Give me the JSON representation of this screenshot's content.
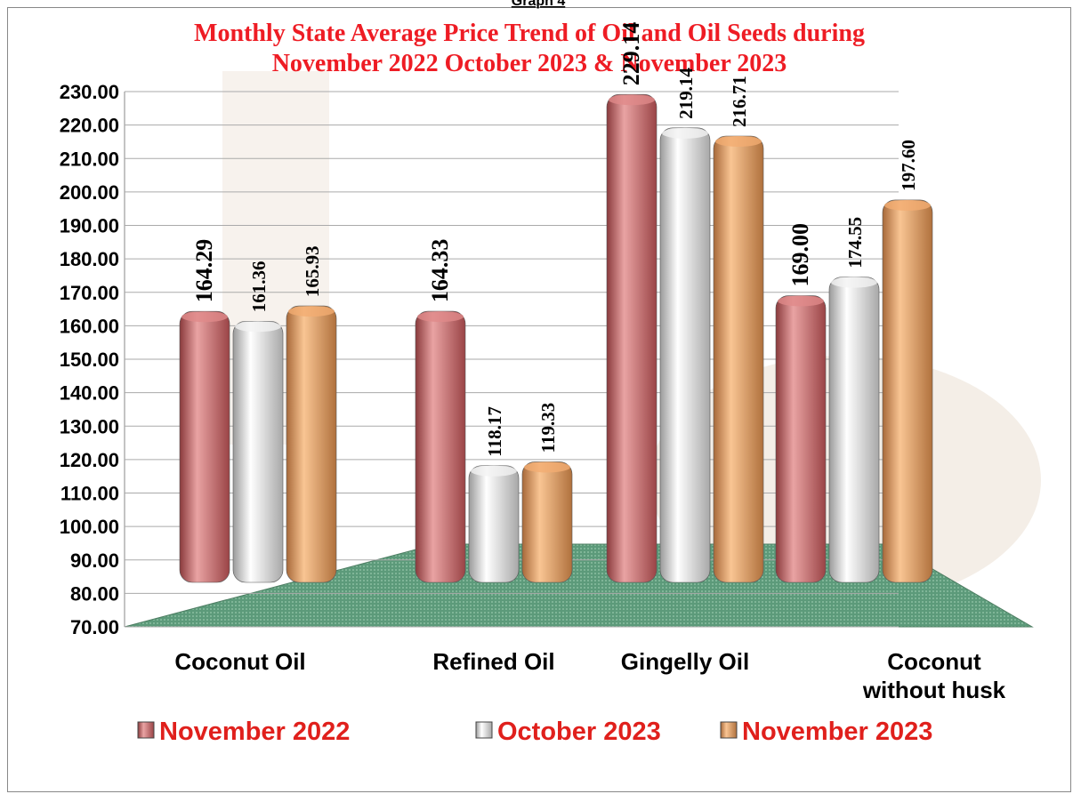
{
  "chart_data": {
    "type": "bar",
    "caption": "Graph 4",
    "title": [
      "Monthly State Average Price Trend of Oil and Oil Seeds during",
      "November 2022  October 2023 &  November 2023"
    ],
    "categories": [
      "Coconut Oil",
      "Refined Oil",
      "Gingelly Oil",
      "Coconut without husk"
    ],
    "series": [
      {
        "name": "November 2022",
        "color": "#e0898a",
        "values": [
          164.29,
          164.33,
          229.14,
          169.0
        ],
        "value_labels": [
          "164.29",
          "164.33",
          "229.14",
          "169.00"
        ]
      },
      {
        "name": "October 2023",
        "color": "#f2f2f2",
        "values": [
          161.36,
          118.17,
          219.14,
          174.55
        ],
        "value_labels": [
          "161.36",
          "118.17",
          "219.14",
          "174.55"
        ]
      },
      {
        "name": "November 2023",
        "color": "#f3ad72",
        "values": [
          165.93,
          119.33,
          216.71,
          197.6
        ],
        "value_labels": [
          "165.93",
          "119.33",
          "216.71",
          "197.60"
        ]
      }
    ],
    "ylim": [
      70,
      230
    ],
    "yticks": [
      {
        "value": 70,
        "label": "70.00"
      },
      {
        "value": 80,
        "label": "80.00"
      },
      {
        "value": 90,
        "label": "90.00"
      },
      {
        "value": 100,
        "label": "100.00"
      },
      {
        "value": 110,
        "label": "110.00"
      },
      {
        "value": 120,
        "label": "120.00"
      },
      {
        "value": 130,
        "label": "130.00"
      },
      {
        "value": 140,
        "label": "140.00"
      },
      {
        "value": 150,
        "label": "150.00"
      },
      {
        "value": 160,
        "label": "160.00"
      },
      {
        "value": 170,
        "label": "170.00"
      },
      {
        "value": 180,
        "label": "180.00"
      },
      {
        "value": 190,
        "label": "190.00"
      },
      {
        "value": 200,
        "label": "200.00"
      },
      {
        "value": 210,
        "label": "210.00"
      },
      {
        "value": 220,
        "label": "220.00"
      },
      {
        "value": 230,
        "label": "230.00"
      }
    ],
    "grid": true,
    "legend": "bottom"
  }
}
